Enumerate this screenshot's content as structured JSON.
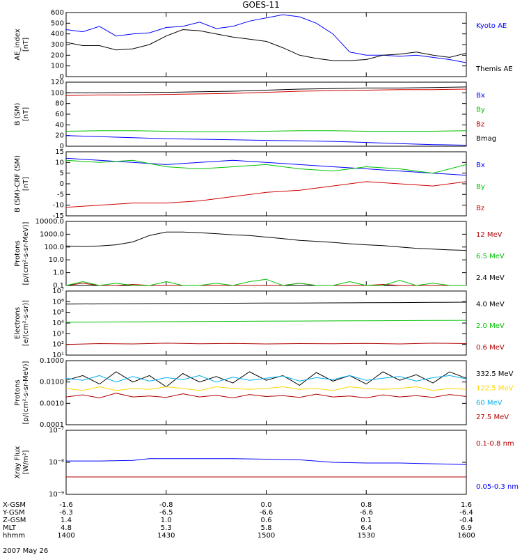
{
  "figure": {
    "title": "GOES-11",
    "date_label": "2007 May 26"
  },
  "orbit_table": {
    "rows": [
      {
        "label": "X-GSM",
        "values": [
          "-1.6",
          "-0.8",
          "0.0",
          "0.8",
          "1.6"
        ]
      },
      {
        "label": "Y-GSM",
        "values": [
          "-6.3",
          "-6.5",
          "-6.6",
          "-6.6",
          "-6.4"
        ]
      },
      {
        "label": "Z-GSM",
        "values": [
          "1.4",
          "1.0",
          "0.6",
          "0.1",
          "-0.4"
        ]
      },
      {
        "label": "MLT",
        "values": [
          "4.8",
          "5.3",
          "5.8",
          "6.4",
          "6.9"
        ]
      },
      {
        "label": "hhmm",
        "values": [
          "1400",
          "1430",
          "1500",
          "1530",
          "1600"
        ]
      }
    ]
  },
  "chart_data": [
    {
      "type": "line",
      "ylabel_lines": [
        "AE_index",
        "[nT]"
      ],
      "ylim": [
        0,
        600
      ],
      "yscale": "linear",
      "yticks": [
        0,
        100,
        200,
        300,
        400,
        500,
        600
      ],
      "ytick_labels": [
        "0",
        "100",
        "200",
        "300",
        "400",
        "500",
        "600"
      ],
      "x": [
        0,
        5,
        10,
        15,
        20,
        25,
        30,
        35,
        40,
        45,
        50,
        55,
        60,
        65,
        70,
        75,
        80,
        85,
        90,
        95,
        100,
        105,
        110,
        115,
        120
      ],
      "series": [
        {
          "name": "Kyoto AE",
          "color": "#0000ff",
          "values": [
            440,
            420,
            470,
            380,
            400,
            410,
            460,
            470,
            510,
            450,
            470,
            520,
            550,
            580,
            560,
            500,
            400,
            230,
            200,
            200,
            190,
            200,
            180,
            160,
            130
          ]
        },
        {
          "name": "Themis AE",
          "color": "#000000",
          "values": [
            320,
            290,
            290,
            250,
            260,
            300,
            380,
            440,
            430,
            400,
            370,
            350,
            330,
            270,
            200,
            170,
            150,
            150,
            160,
            200,
            210,
            230,
            200,
            180,
            220
          ]
        }
      ]
    },
    {
      "type": "line",
      "ylabel_lines": [
        "B (SM)",
        "[nT]"
      ],
      "ylim": [
        0,
        120
      ],
      "yscale": "linear",
      "yticks": [
        0,
        20,
        40,
        60,
        80,
        100,
        120
      ],
      "ytick_labels": [
        "0",
        "20",
        "40",
        "60",
        "80",
        "100",
        "120"
      ],
      "x": [
        0,
        10,
        20,
        30,
        40,
        50,
        60,
        70,
        80,
        90,
        100,
        110,
        120
      ],
      "series": [
        {
          "name": "Bx",
          "color": "#0000ff",
          "values": [
            20,
            18,
            16,
            14,
            13,
            12,
            11,
            10,
            9,
            7,
            5,
            3,
            2
          ]
        },
        {
          "name": "By",
          "color": "#00c000",
          "values": [
            28,
            29,
            29,
            28,
            27,
            27,
            28,
            29,
            29,
            28,
            28,
            28,
            29
          ]
        },
        {
          "name": "Bz",
          "color": "#d00000",
          "values": [
            95,
            96,
            96,
            97,
            98,
            99,
            101,
            103,
            104,
            105,
            106,
            106,
            107
          ]
        },
        {
          "name": "Bmag",
          "color": "#000000",
          "values": [
            100,
            100,
            101,
            101,
            102,
            103,
            105,
            107,
            108,
            109,
            109,
            110,
            111
          ]
        }
      ]
    },
    {
      "type": "line",
      "ylabel_lines": [
        "B (SM)-CRF (SM)",
        "[nT]"
      ],
      "ylim": [
        -15,
        15
      ],
      "yscale": "linear",
      "yticks": [
        -15,
        -10,
        -5,
        0,
        5,
        10,
        15
      ],
      "ytick_labels": [
        "-15",
        "-10",
        "-5",
        "0",
        "5",
        "10",
        "15"
      ],
      "x": [
        0,
        10,
        20,
        30,
        40,
        50,
        60,
        70,
        80,
        90,
        100,
        110,
        120
      ],
      "series": [
        {
          "name": "Bx",
          "color": "#0000ff",
          "values": [
            12,
            11,
            10,
            9,
            10,
            11,
            10,
            9,
            8,
            7,
            6,
            5,
            4
          ]
        },
        {
          "name": "By",
          "color": "#00c000",
          "values": [
            11,
            10,
            11,
            8,
            7,
            8,
            9,
            7,
            6,
            8,
            7,
            5,
            9
          ]
        },
        {
          "name": "Bz",
          "color": "#d00000",
          "values": [
            -11,
            -10,
            -9,
            -9,
            -8,
            -6,
            -4,
            -3,
            -1,
            1,
            0,
            -1,
            1
          ]
        }
      ]
    },
    {
      "type": "line",
      "ylabel_lines": [
        "Protons",
        "[p/(cm²-s-sr-MeV)]"
      ],
      "ylim": [
        0.1,
        10000
      ],
      "yscale": "log",
      "yticks": [
        0.1,
        1,
        10,
        100,
        1000,
        10000
      ],
      "ytick_labels": [
        "0.1",
        "1.0",
        "10.0",
        "100.0",
        "1000.0",
        "10000.0"
      ],
      "x": [
        0,
        5,
        10,
        15,
        20,
        25,
        30,
        35,
        40,
        45,
        50,
        55,
        60,
        65,
        70,
        75,
        80,
        85,
        90,
        95,
        100,
        105,
        110,
        115,
        120
      ],
      "series": [
        {
          "name": "12 MeV",
          "color": "#b00000",
          "values": [
            0.1,
            0.15,
            0.1,
            0.1,
            0.12,
            0.1,
            0.1,
            0.1,
            0.1,
            0.1,
            0.1,
            0.1,
            0.1,
            0.1,
            0.15,
            0.1,
            0.1,
            0.1,
            0.1,
            0.12,
            0.1,
            0.1,
            0.1,
            0.1,
            0.1
          ]
        },
        {
          "name": "6.5 MeV",
          "color": "#00c000",
          "values": [
            0.1,
            0.2,
            0.1,
            0.15,
            0.1,
            0.1,
            0.2,
            0.1,
            0.1,
            0.15,
            0.1,
            0.2,
            0.3,
            0.1,
            0.15,
            0.1,
            0.1,
            0.2,
            0.1,
            0.1,
            0.25,
            0.1,
            0.15,
            0.1,
            0.1
          ]
        },
        {
          "name": "2.4 MeV",
          "color": "#000000",
          "values": [
            120,
            110,
            120,
            150,
            250,
            800,
            1500,
            1500,
            1300,
            1100,
            900,
            800,
            600,
            450,
            330,
            280,
            230,
            180,
            150,
            130,
            100,
            80,
            70,
            60,
            55
          ]
        }
      ]
    },
    {
      "type": "line",
      "ylabel_lines": [
        "Electrons",
        "[e/(cm²-s-sr)]"
      ],
      "ylim": [
        10,
        10000000
      ],
      "yscale": "log",
      "yticks": [
        10,
        100,
        1000,
        10000,
        100000,
        1000000,
        10000000
      ],
      "ytick_labels": [
        "10¹",
        "10²",
        "10³",
        "10⁴",
        "10⁵",
        "10⁶",
        "10⁷"
      ],
      "x": [
        0,
        10,
        20,
        30,
        40,
        50,
        60,
        70,
        80,
        90,
        100,
        110,
        120
      ],
      "series": [
        {
          "name": "4.0 MeV",
          "color": "#000000",
          "values": [
            600000,
            620000,
            650000,
            680000,
            700000,
            720000,
            740000,
            760000,
            780000,
            800000,
            830000,
            860000,
            900000
          ]
        },
        {
          "name": "2.0 MeV",
          "color": "#00c000",
          "values": [
            12000,
            12500,
            13000,
            13500,
            14000,
            14500,
            15000,
            15500,
            16000,
            16500,
            17000,
            17500,
            18000
          ]
        },
        {
          "name": "0.6 MeV",
          "color": "#b00000",
          "values": [
            100,
            120,
            110,
            130,
            115,
            125,
            110,
            120,
            115,
            125,
            110,
            130,
            120
          ]
        }
      ]
    },
    {
      "type": "line",
      "ylabel_lines": [
        "Protons",
        "[p/(cm²-s-sr-MeV)]"
      ],
      "ylim": [
        0.0001,
        0.1
      ],
      "yscale": "log",
      "yticks": [
        0.0001,
        0.001,
        0.01,
        0.1
      ],
      "ytick_labels": [
        "0.0001",
        "0.0010",
        "0.0100",
        "0.1000"
      ],
      "x": [
        0,
        5,
        10,
        15,
        20,
        25,
        30,
        35,
        40,
        45,
        50,
        55,
        60,
        65,
        70,
        75,
        80,
        85,
        90,
        95,
        100,
        105,
        110,
        115,
        120
      ],
      "series": [
        {
          "name": "332.5 MeV",
          "color": "#000000",
          "values": [
            0.012,
            0.02,
            0.008,
            0.03,
            0.01,
            0.02,
            0.006,
            0.025,
            0.01,
            0.018,
            0.009,
            0.03,
            0.012,
            0.02,
            0.007,
            0.028,
            0.011,
            0.02,
            0.008,
            0.03,
            0.012,
            0.022,
            0.009,
            0.03,
            0.015
          ]
        },
        {
          "name": "122.5 MeV",
          "color": "#ffd700",
          "values": [
            0.005,
            0.004,
            0.006,
            0.004,
            0.005,
            0.0045,
            0.006,
            0.005,
            0.004,
            0.006,
            0.005,
            0.0045,
            0.005,
            0.006,
            0.0045,
            0.005,
            0.004,
            0.006,
            0.005,
            0.0045,
            0.005,
            0.006,
            0.004,
            0.005,
            0.0045
          ]
        },
        {
          "name": "60 MeV",
          "color": "#00aeef",
          "values": [
            0.015,
            0.012,
            0.02,
            0.01,
            0.018,
            0.011,
            0.016,
            0.013,
            0.02,
            0.01,
            0.017,
            0.012,
            0.015,
            0.019,
            0.011,
            0.016,
            0.013,
            0.02,
            0.012,
            0.015,
            0.018,
            0.011,
            0.016,
            0.02,
            0.014
          ]
        },
        {
          "name": "27.5 MeV",
          "color": "#b00000",
          "values": [
            0.002,
            0.0025,
            0.0018,
            0.003,
            0.002,
            0.0022,
            0.0019,
            0.0028,
            0.002,
            0.0024,
            0.0018,
            0.0026,
            0.0021,
            0.0023,
            0.0019,
            0.0027,
            0.002,
            0.0022,
            0.0018,
            0.0025,
            0.002,
            0.0023,
            0.0019,
            0.0026,
            0.0021
          ]
        }
      ]
    },
    {
      "type": "line",
      "ylabel_lines": [
        "Xray Flux",
        "[W/m²]"
      ],
      "ylim": [
        1e-09,
        1e-07
      ],
      "yscale": "log",
      "yticks": [
        1e-09,
        1e-08,
        1e-07
      ],
      "ytick_labels": [
        "10⁻⁹",
        "10⁻⁸",
        "10⁻⁷"
      ],
      "x": [
        0,
        10,
        20,
        25,
        30,
        40,
        50,
        60,
        70,
        80,
        90,
        100,
        110,
        120
      ],
      "series": [
        {
          "name": "0.1-0.8 nm",
          "color": "#b00000",
          "values": [
            3.5e-09,
            3.5e-09,
            3.5e-09,
            3.5e-09,
            3.5e-09,
            3.5e-09,
            3.5e-09,
            3.5e-09,
            3.5e-09,
            3.5e-09,
            3.5e-09,
            3.5e-09,
            3.5e-09,
            3.5e-09
          ]
        },
        {
          "name": "0.05-0.3 nm",
          "color": "#0000ff",
          "values": [
            1.1e-08,
            1.1e-08,
            1.15e-08,
            1.3e-08,
            1.3e-08,
            1.3e-08,
            1.3e-08,
            1.25e-08,
            1.2e-08,
            1e-08,
            9.5e-09,
            9.5e-09,
            9e-09,
            8.5e-09
          ]
        }
      ]
    }
  ],
  "xaxis": {
    "xlim": [
      0,
      120
    ]
  }
}
